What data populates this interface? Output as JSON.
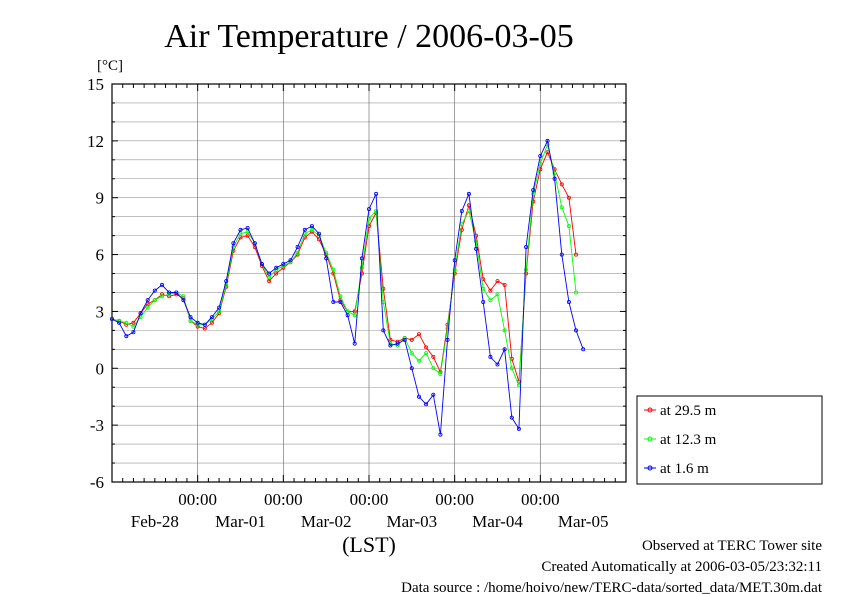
{
  "chart_data": {
    "type": "line",
    "title": "Air Temperature / 2006-03-05",
    "yunit": "[°C]",
    "xlabel": "(LST)",
    "ylim": [
      -6,
      15
    ],
    "yticks": [
      "15",
      "12",
      "9",
      "6",
      "3",
      "0",
      "-3",
      "-6"
    ],
    "xlim_hours": [
      0,
      144
    ],
    "time_labels": [
      "00:00",
      "00:00",
      "00:00",
      "00:00",
      "00:00"
    ],
    "day_labels": [
      "Feb-28",
      "Mar-01",
      "Mar-02",
      "Mar-03",
      "Mar-04",
      "Mar-05"
    ],
    "grid": true,
    "legend_position": "bottom-right",
    "series": [
      {
        "name": "at 29.5 m",
        "color": "#ff0000",
        "points": [
          [
            0,
            2.6
          ],
          [
            2,
            2.5
          ],
          [
            4,
            2.3
          ],
          [
            6,
            2.4
          ],
          [
            8,
            2.9
          ],
          [
            10,
            3.4
          ],
          [
            12,
            3.6
          ],
          [
            14,
            3.9
          ],
          [
            16,
            3.8
          ],
          [
            18,
            3.9
          ],
          [
            20,
            3.7
          ],
          [
            22,
            2.5
          ],
          [
            24,
            2.2
          ],
          [
            26,
            2.1
          ],
          [
            28,
            2.4
          ],
          [
            30,
            2.9
          ],
          [
            32,
            4.3
          ],
          [
            34,
            6.2
          ],
          [
            36,
            6.9
          ],
          [
            38,
            7.0
          ],
          [
            40,
            6.4
          ],
          [
            42,
            5.4
          ],
          [
            44,
            4.6
          ],
          [
            46,
            5.0
          ],
          [
            48,
            5.3
          ],
          [
            50,
            5.6
          ],
          [
            52,
            6.0
          ],
          [
            54,
            6.9
          ],
          [
            56,
            7.2
          ],
          [
            58,
            6.8
          ],
          [
            60,
            6.0
          ],
          [
            62,
            5.0
          ],
          [
            64,
            3.6
          ],
          [
            66,
            3.0
          ],
          [
            68,
            3.0
          ],
          [
            70,
            5.0
          ],
          [
            72,
            7.5
          ],
          [
            74,
            8.2
          ],
          [
            76,
            4.2
          ],
          [
            78,
            1.5
          ],
          [
            80,
            1.4
          ],
          [
            82,
            1.6
          ],
          [
            84,
            1.5
          ],
          [
            86,
            1.8
          ],
          [
            88,
            1.1
          ],
          [
            90,
            0.6
          ],
          [
            92,
            -0.2
          ],
          [
            94,
            2.3
          ],
          [
            96,
            5.0
          ],
          [
            98,
            7.3
          ],
          [
            100,
            8.6
          ],
          [
            102,
            7.0
          ],
          [
            104,
            4.7
          ],
          [
            106,
            4.1
          ],
          [
            108,
            4.6
          ],
          [
            110,
            4.4
          ],
          [
            112,
            0.5
          ],
          [
            114,
            -0.7
          ],
          [
            116,
            5.0
          ],
          [
            118,
            8.8
          ],
          [
            120,
            10.5
          ],
          [
            122,
            11.4
          ],
          [
            124,
            10.5
          ],
          [
            126,
            9.7
          ],
          [
            128,
            9.0
          ],
          [
            130,
            6.0
          ]
        ]
      },
      {
        "name": "at 12.3 m",
        "color": "#00ff00",
        "points": [
          [
            0,
            2.6
          ],
          [
            2,
            2.5
          ],
          [
            4,
            2.4
          ],
          [
            6,
            2.2
          ],
          [
            8,
            2.7
          ],
          [
            10,
            3.2
          ],
          [
            12,
            3.6
          ],
          [
            14,
            3.8
          ],
          [
            16,
            3.9
          ],
          [
            18,
            4.0
          ],
          [
            20,
            3.8
          ],
          [
            22,
            2.5
          ],
          [
            24,
            2.3
          ],
          [
            26,
            2.3
          ],
          [
            28,
            2.6
          ],
          [
            30,
            3.0
          ],
          [
            32,
            4.4
          ],
          [
            34,
            6.4
          ],
          [
            36,
            7.1
          ],
          [
            38,
            7.2
          ],
          [
            40,
            6.6
          ],
          [
            42,
            5.5
          ],
          [
            44,
            4.8
          ],
          [
            46,
            5.2
          ],
          [
            48,
            5.4
          ],
          [
            50,
            5.6
          ],
          [
            52,
            6.1
          ],
          [
            54,
            7.1
          ],
          [
            56,
            7.3
          ],
          [
            58,
            7.0
          ],
          [
            60,
            6.1
          ],
          [
            62,
            5.2
          ],
          [
            64,
            3.8
          ],
          [
            66,
            3.0
          ],
          [
            68,
            2.8
          ],
          [
            70,
            5.3
          ],
          [
            72,
            7.9
          ],
          [
            74,
            8.3
          ],
          [
            76,
            3.5
          ],
          [
            78,
            1.3
          ],
          [
            80,
            1.2
          ],
          [
            82,
            1.6
          ],
          [
            84,
            0.8
          ],
          [
            86,
            0.4
          ],
          [
            88,
            0.8
          ],
          [
            90,
            0.0
          ],
          [
            92,
            -0.3
          ],
          [
            94,
            2.1
          ],
          [
            96,
            5.2
          ],
          [
            98,
            7.6
          ],
          [
            100,
            8.3
          ],
          [
            102,
            6.7
          ],
          [
            104,
            4.2
          ],
          [
            106,
            3.6
          ],
          [
            108,
            3.9
          ],
          [
            110,
            2.0
          ],
          [
            112,
            0.0
          ],
          [
            114,
            -0.9
          ],
          [
            116,
            5.2
          ],
          [
            118,
            9.2
          ],
          [
            120,
            10.8
          ],
          [
            122,
            11.8
          ],
          [
            124,
            10.3
          ],
          [
            126,
            8.5
          ],
          [
            128,
            7.5
          ],
          [
            130,
            4.0
          ]
        ]
      },
      {
        "name": "at 1.6 m",
        "color": "#0000ff",
        "points": [
          [
            0,
            2.6
          ],
          [
            2,
            2.4
          ],
          [
            4,
            1.7
          ],
          [
            6,
            1.9
          ],
          [
            8,
            2.9
          ],
          [
            10,
            3.6
          ],
          [
            12,
            4.1
          ],
          [
            14,
            4.4
          ],
          [
            16,
            4.0
          ],
          [
            18,
            4.0
          ],
          [
            20,
            3.6
          ],
          [
            22,
            2.7
          ],
          [
            24,
            2.4
          ],
          [
            26,
            2.3
          ],
          [
            28,
            2.7
          ],
          [
            30,
            3.2
          ],
          [
            32,
            4.6
          ],
          [
            34,
            6.6
          ],
          [
            36,
            7.3
          ],
          [
            38,
            7.4
          ],
          [
            40,
            6.6
          ],
          [
            42,
            5.5
          ],
          [
            44,
            5.0
          ],
          [
            46,
            5.3
          ],
          [
            48,
            5.5
          ],
          [
            50,
            5.7
          ],
          [
            52,
            6.4
          ],
          [
            54,
            7.3
          ],
          [
            56,
            7.5
          ],
          [
            58,
            7.1
          ],
          [
            60,
            5.8
          ],
          [
            62,
            3.5
          ],
          [
            64,
            3.5
          ],
          [
            66,
            2.8
          ],
          [
            68,
            1.3
          ],
          [
            70,
            5.8
          ],
          [
            72,
            8.4
          ],
          [
            74,
            9.2
          ],
          [
            76,
            2.0
          ],
          [
            78,
            1.2
          ],
          [
            80,
            1.3
          ],
          [
            82,
            1.5
          ],
          [
            84,
            0.0
          ],
          [
            86,
            -1.5
          ],
          [
            88,
            -1.9
          ],
          [
            90,
            -1.4
          ],
          [
            92,
            -3.5
          ],
          [
            94,
            1.5
          ],
          [
            96,
            5.7
          ],
          [
            98,
            8.3
          ],
          [
            100,
            9.2
          ],
          [
            102,
            6.3
          ],
          [
            104,
            3.5
          ],
          [
            106,
            0.6
          ],
          [
            108,
            0.2
          ],
          [
            110,
            1.0
          ],
          [
            112,
            -2.6
          ],
          [
            114,
            -3.2
          ],
          [
            116,
            6.4
          ],
          [
            118,
            9.4
          ],
          [
            120,
            11.2
          ],
          [
            122,
            12.0
          ],
          [
            124,
            10.0
          ],
          [
            126,
            6.0
          ],
          [
            128,
            3.5
          ],
          [
            130,
            2.0
          ],
          [
            132,
            1.0
          ]
        ]
      }
    ]
  },
  "footer": {
    "site": "Observed at TERC Tower site",
    "created": "Created Automatically at 2006-03-05/23:32:11",
    "source": "Data source : /home/hoivo/new/TERC-data/sorted_data/MET.30m.dat"
  }
}
